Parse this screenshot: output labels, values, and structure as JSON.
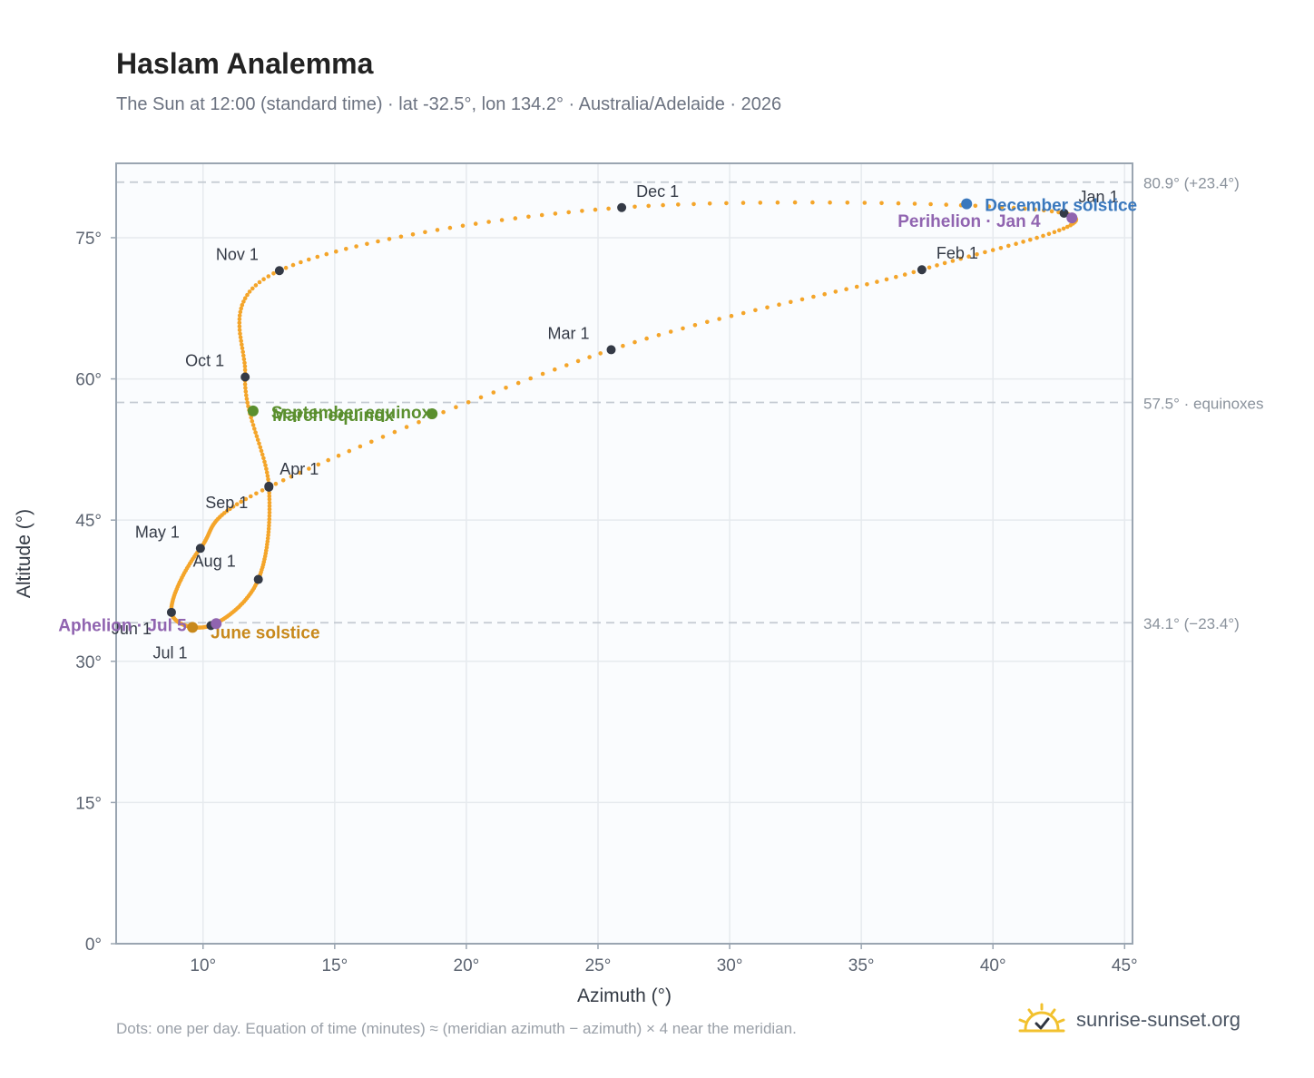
{
  "title": "Haslam Analemma",
  "subtitle": "The Sun at 12:00 (standard time) · lat -32.5°, lon 134.2° · Australia/Adelaide · 2026",
  "footnote": "Dots: one per day. Equation of time (minutes) ≈ (meridian azimuth − azimuth) × 4 near the meridian.",
  "brand": {
    "name": "sunrise-sunset.org",
    "logo_icon": "sun-check-icon"
  },
  "colors": {
    "path": "#f4a52a",
    "month_marker": "#343a46",
    "equinox": "#5a8f2e",
    "june_solstice": "#c8891c",
    "december_solstice": "#3a78bd",
    "perihelion": "#9064b0",
    "axis": "#9aa5b1",
    "grid": "#e6eaee",
    "plot_bg": "#fafcfe",
    "ref_line": "#c4cad2"
  },
  "chart_data": {
    "type": "scatter",
    "xlabel": "Azimuth (°)",
    "ylabel": "Altitude (°)",
    "xlim": [
      6.7,
      45.3
    ],
    "ylim": [
      0,
      82.9
    ],
    "xticks": [
      {
        "value": 10,
        "label": "10°"
      },
      {
        "value": 15,
        "label": "15°"
      },
      {
        "value": 20,
        "label": "20°"
      },
      {
        "value": 25,
        "label": "25°"
      },
      {
        "value": 30,
        "label": "30°"
      },
      {
        "value": 35,
        "label": "35°"
      },
      {
        "value": 40,
        "label": "40°"
      },
      {
        "value": 45,
        "label": "45°"
      }
    ],
    "yticks": [
      {
        "value": 0,
        "label": "0°"
      },
      {
        "value": 15,
        "label": "15°"
      },
      {
        "value": 30,
        "label": "30°"
      },
      {
        "value": 45,
        "label": "45°"
      },
      {
        "value": 60,
        "label": "60°"
      },
      {
        "value": 75,
        "label": "75°"
      }
    ],
    "grid": true,
    "reference_lines": [
      {
        "y": 80.9,
        "label": "80.9° (+23.4°)"
      },
      {
        "y": 57.5,
        "label": "57.5° · equinoxes"
      },
      {
        "y": 34.1,
        "label": "34.1° (−23.4°)"
      }
    ],
    "month_points": [
      {
        "label": "Jan 1",
        "azimuth": 42.7,
        "altitude": 77.6
      },
      {
        "label": "Feb 1",
        "azimuth": 37.3,
        "altitude": 71.6
      },
      {
        "label": "Mar 1",
        "azimuth": 25.5,
        "altitude": 63.1
      },
      {
        "label": "Apr 1",
        "azimuth": 12.5,
        "altitude": 48.5
      },
      {
        "label": "May 1",
        "azimuth": 9.9,
        "altitude": 42.0
      },
      {
        "label": "Jun 1",
        "azimuth": 8.8,
        "altitude": 35.2
      },
      {
        "label": "Jul 1",
        "azimuth": 10.3,
        "altitude": 33.8
      },
      {
        "label": "Aug 1",
        "azimuth": 12.1,
        "altitude": 38.7
      },
      {
        "label": "Sep 1",
        "azimuth": 12.5,
        "altitude": 48.6
      },
      {
        "label": "Oct 1",
        "azimuth": 11.6,
        "altitude": 60.2
      },
      {
        "label": "Nov 1",
        "azimuth": 12.9,
        "altitude": 71.5
      },
      {
        "label": "Dec 1",
        "azimuth": 25.9,
        "altitude": 78.2
      }
    ],
    "events": [
      {
        "label": "March equinox",
        "azimuth": 18.7,
        "altitude": 56.3,
        "kind": "equinox"
      },
      {
        "label": "September equinox",
        "azimuth": 11.9,
        "altitude": 56.6,
        "kind": "equinox"
      },
      {
        "label": "June solstice",
        "azimuth": 9.6,
        "altitude": 33.6,
        "kind": "june_solstice"
      },
      {
        "label": "December solstice",
        "azimuth": 39.0,
        "altitude": 78.6,
        "kind": "december_solstice"
      },
      {
        "label": "Perihelion · Jan 4",
        "azimuth": 43.0,
        "altitude": 77.1,
        "kind": "perihelion"
      },
      {
        "label": "Aphelion · Jul 5",
        "azimuth": 10.5,
        "altitude": 34.0,
        "kind": "perihelion"
      }
    ]
  }
}
